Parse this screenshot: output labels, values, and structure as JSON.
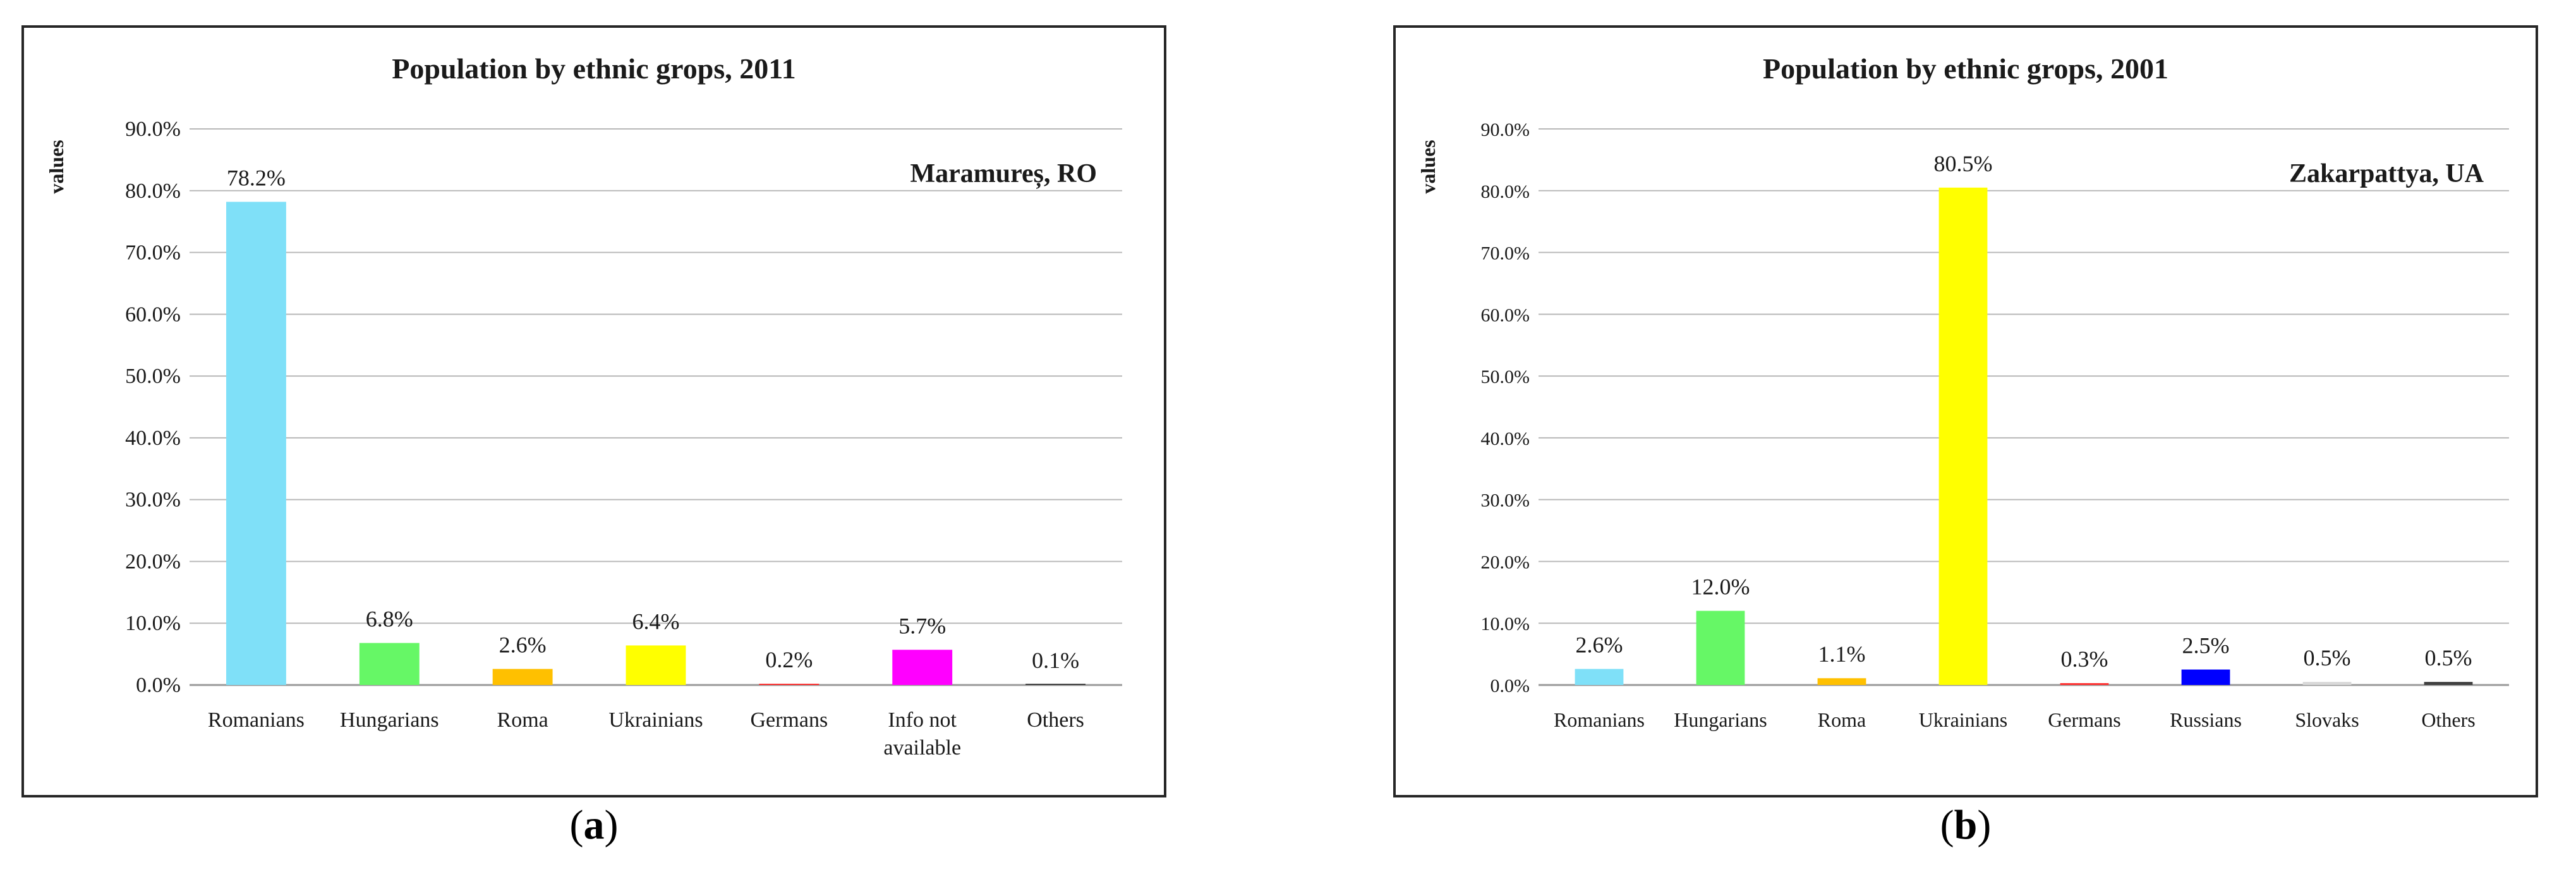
{
  "chart_data": [
    {
      "type": "bar",
      "title": "Population by ethnic grops, 2011",
      "ylabel": "values",
      "xlabel": "",
      "annotation": "Maramureș, RO",
      "ylim": [
        0,
        90
      ],
      "yticks": [
        "0.0%",
        "10.0%",
        "20.0%",
        "30.0%",
        "40.0%",
        "50.0%",
        "60.0%",
        "70.0%",
        "80.0%",
        "90.0%"
      ],
      "grid": true,
      "legend": "none",
      "categories": [
        [
          "Romanians"
        ],
        [
          "Hungarians"
        ],
        [
          "Roma"
        ],
        [
          "Ukrainians"
        ],
        [
          "Germans"
        ],
        [
          "Info not",
          "available"
        ],
        [
          "Others"
        ]
      ],
      "values": [
        78.2,
        6.8,
        2.6,
        6.4,
        0.2,
        5.7,
        0.1
      ],
      "data_labels": [
        "78.2%",
        "6.8%",
        "2.6%",
        "6.4%",
        "0.2%",
        "5.7%",
        "0.1%"
      ],
      "colors": [
        "#7fe0f8",
        "#66f766",
        "#ffc000",
        "#ffff00",
        "#ff3030",
        "#ff00ff",
        "#404040"
      ]
    },
    {
      "type": "bar",
      "title": "Population by ethnic grops, 2001",
      "ylabel": "values",
      "xlabel": "",
      "annotation": "Zakarpattya, UA",
      "ylim": [
        0,
        90
      ],
      "yticks": [
        "0.0%",
        "10.0%",
        "20.0%",
        "30.0%",
        "40.0%",
        "50.0%",
        "60.0%",
        "70.0%",
        "80.0%",
        "90.0%"
      ],
      "grid": true,
      "legend": "none",
      "categories": [
        [
          "Romanians"
        ],
        [
          "Hungarians"
        ],
        [
          "Roma"
        ],
        [
          "Ukrainians"
        ],
        [
          "Germans"
        ],
        [
          "Russians"
        ],
        [
          "Slovaks"
        ],
        [
          "Others"
        ]
      ],
      "values": [
        2.6,
        12.0,
        1.1,
        80.5,
        0.3,
        2.5,
        0.5,
        0.5
      ],
      "data_labels": [
        "2.6%",
        "12.0%",
        "1.1%",
        "80.5%",
        "0.3%",
        "2.5%",
        "0.5%",
        "0.5%"
      ],
      "colors": [
        "#7fe0f8",
        "#66f766",
        "#ffc000",
        "#ffff00",
        "#ff3030",
        "#0000ff",
        "#d9d9d9",
        "#404040"
      ]
    }
  ],
  "captions": {
    "a_letter": "a",
    "b_letter": "b"
  }
}
